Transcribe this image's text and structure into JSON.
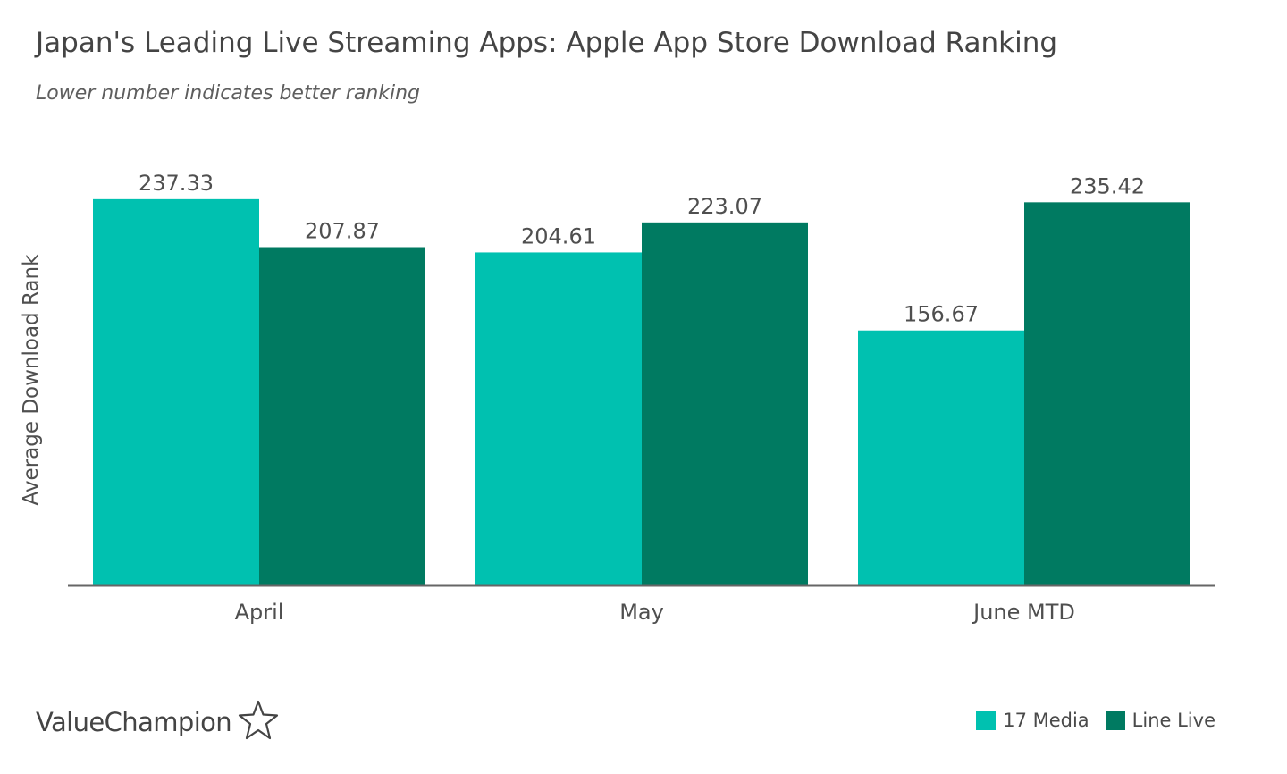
{
  "brand": {
    "name": "ValueChampion",
    "icon": "star-outline-icon"
  },
  "colors": {
    "series_1": "#00c1b0",
    "series_2": "#007a61",
    "axis": "#666666",
    "text": "#4f4f4f"
  },
  "chart_data": {
    "type": "bar",
    "title": "Japan's Leading Live Streaming Apps: Apple App Store Download Ranking",
    "subtitle": "Lower number indicates better ranking",
    "xlabel": "",
    "ylabel": "Average Download Rank",
    "categories": [
      "April",
      "May",
      "June MTD"
    ],
    "series": [
      {
        "name": "17 Media",
        "values": [
          237.33,
          204.61,
          156.67
        ],
        "labels": [
          "237.33",
          "204.61",
          "156.67"
        ]
      },
      {
        "name": "Line Live",
        "values": [
          207.87,
          223.07,
          235.42
        ],
        "labels": [
          "207.87",
          "223.07",
          "235.42"
        ]
      }
    ],
    "ylim": [
      0,
      240
    ],
    "grid": false,
    "legend": "bottom-right"
  }
}
